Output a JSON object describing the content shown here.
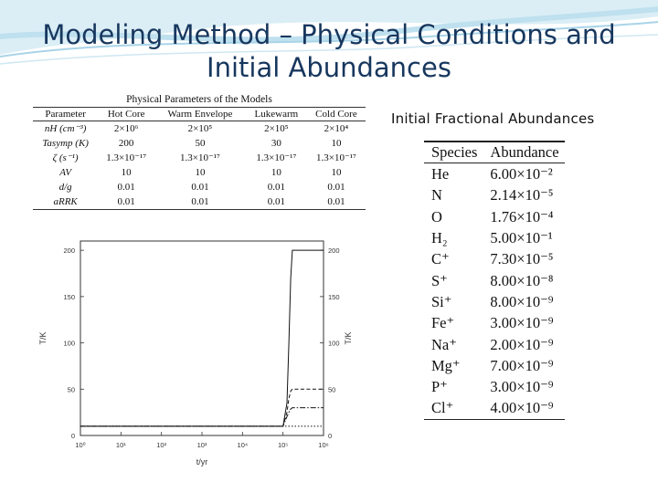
{
  "slide": {
    "title_line1": "Modeling Method – Physical Conditions and",
    "title_line2": "Initial Abundances"
  },
  "params_table": {
    "caption": "Physical Parameters of the Models",
    "headers": [
      "Parameter",
      "Hot Core",
      "Warm Envelope",
      "Lukewarm",
      "Cold Core"
    ],
    "rows": [
      [
        "nH (cm⁻³)",
        "2×10⁶",
        "2×10⁵",
        "2×10⁵",
        "2×10⁴"
      ],
      [
        "Tasymp (K)",
        "200",
        "50",
        "30",
        "10"
      ],
      [
        "ζ (s⁻¹)",
        "1.3×10⁻¹⁷",
        "1.3×10⁻¹⁷",
        "1.3×10⁻¹⁷",
        "1.3×10⁻¹⁷"
      ],
      [
        "AV",
        "10",
        "10",
        "10",
        "10"
      ],
      [
        "d/g",
        "0.01",
        "0.01",
        "0.01",
        "0.01"
      ],
      [
        "aRRK",
        "0.01",
        "0.01",
        "0.01",
        "0.01"
      ]
    ]
  },
  "chart_data": {
    "type": "line",
    "xlabel": "t/yr",
    "ylabel": "T/K",
    "ylabel_right": "T/K",
    "xscale": "log",
    "xlim": [
      1,
      1000000
    ],
    "ylim": [
      0,
      210
    ],
    "x_ticks": [
      "10⁰",
      "10¹",
      "10²",
      "10³",
      "10⁴",
      "10⁵",
      "10⁶"
    ],
    "y_ticks": [
      0,
      50,
      100,
      150,
      200
    ],
    "series": [
      {
        "style": "solid",
        "x": [
          1,
          100000,
          125000,
          140000,
          155000,
          170000,
          1000000
        ],
        "y": [
          10,
          10,
          35,
          100,
          170,
          200,
          200
        ]
      },
      {
        "style": "dashed",
        "x": [
          1,
          100000,
          125000,
          140000,
          155000,
          170000,
          1000000
        ],
        "y": [
          10,
          10,
          25,
          40,
          48,
          50,
          50
        ]
      },
      {
        "style": "dashdot",
        "x": [
          1,
          100000,
          130000,
          150000,
          170000,
          1000000
        ],
        "y": [
          10,
          10,
          22,
          28,
          30,
          30
        ]
      },
      {
        "style": "dotted",
        "x": [
          1,
          1000000
        ],
        "y": [
          10,
          10
        ]
      }
    ]
  },
  "abundances": {
    "caption": "Initial Fractional Abundances",
    "headers": [
      "Species",
      "Abundance"
    ],
    "rows": [
      [
        "He",
        "6.00×10⁻²"
      ],
      [
        "N",
        "2.14×10⁻⁵"
      ],
      [
        "O",
        "1.76×10⁻⁴"
      ],
      [
        "H₂",
        "5.00×10⁻¹"
      ],
      [
        "C⁺",
        "7.30×10⁻⁵"
      ],
      [
        "S⁺",
        "8.00×10⁻⁸"
      ],
      [
        "Si⁺",
        "8.00×10⁻⁹"
      ],
      [
        "Fe⁺",
        "3.00×10⁻⁹"
      ],
      [
        "Na⁺",
        "2.00×10⁻⁹"
      ],
      [
        "Mg⁺",
        "7.00×10⁻⁹"
      ],
      [
        "P⁺",
        "3.00×10⁻⁹"
      ],
      [
        "Cl⁺",
        "4.00×10⁻⁹"
      ]
    ]
  }
}
